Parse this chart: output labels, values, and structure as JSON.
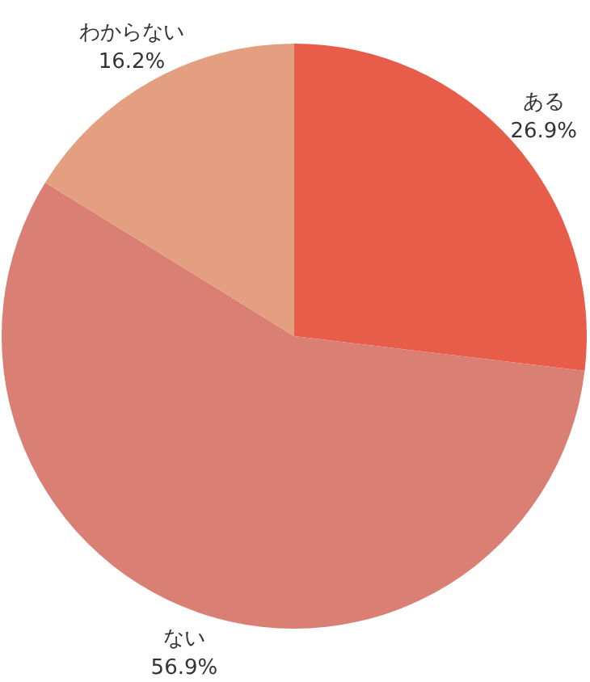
{
  "chart_data": {
    "type": "pie",
    "categories": [
      "ある",
      "ない",
      "わからない"
    ],
    "values": [
      26.9,
      56.9,
      16.2
    ],
    "colors": [
      "#e85c4a",
      "#d97f74",
      "#e39f7f"
    ],
    "value_labels": [
      "26.9%",
      "56.9%",
      "16.2%"
    ]
  }
}
